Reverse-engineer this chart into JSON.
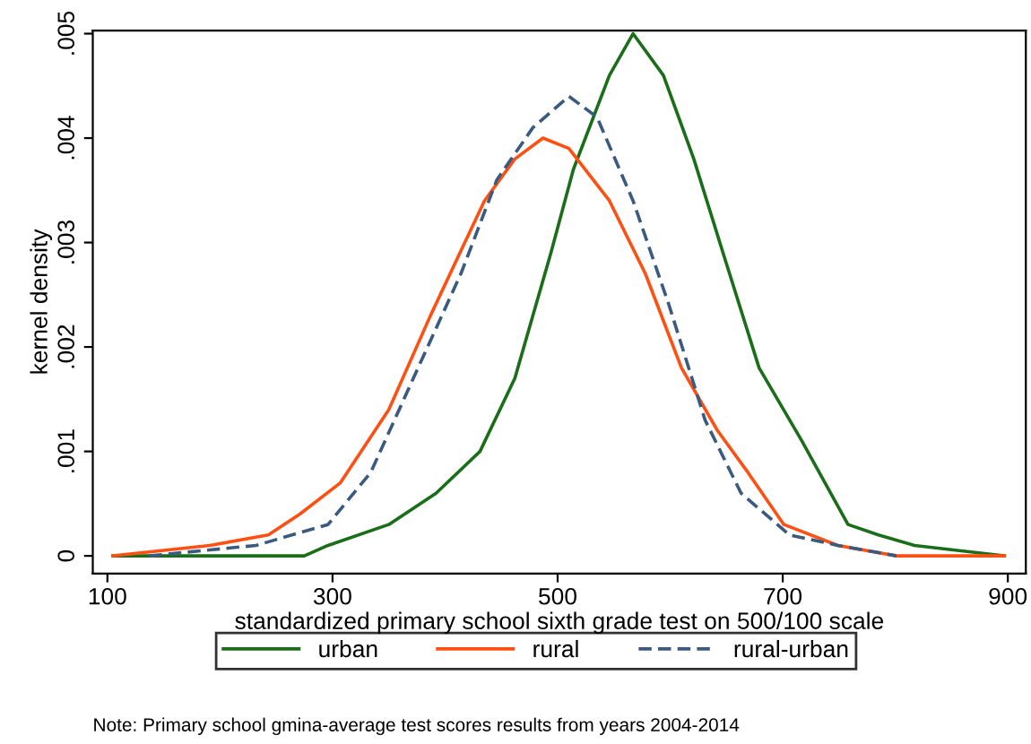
{
  "chart_data": {
    "type": "line",
    "xlabel": "standardized primary school sixth grade test on 500/100 scale",
    "ylabel": "kernel density",
    "series": [
      {
        "name": "urban",
        "color": "#1a6e1a",
        "line_style": "solid",
        "x": [
          105,
          275,
          296,
          350,
          392,
          431,
          462,
          494,
          514,
          546,
          567,
          594,
          621,
          647,
          679,
          717,
          758,
          785,
          817,
          897
        ],
        "values": [
          0.0,
          0.0,
          0.0001,
          0.0003,
          0.0006,
          0.001,
          0.0017,
          0.0029,
          0.0037,
          0.0046,
          0.005,
          0.0046,
          0.0038,
          0.0029,
          0.0018,
          0.0011,
          0.0003,
          0.0002,
          0.0001,
          0.0
        ]
      },
      {
        "name": "rural",
        "color": "#ff5014",
        "line_style": "solid",
        "x": [
          105,
          191,
          243,
          271,
          307,
          350,
          387,
          435,
          462,
          487,
          510,
          546,
          578,
          610,
          642,
          669,
          701,
          749,
          801,
          897
        ],
        "values": [
          0.0,
          0.0001,
          0.0002,
          0.0004,
          0.0007,
          0.0014,
          0.0023,
          0.0034,
          0.0038,
          0.004,
          0.0039,
          0.0034,
          0.0027,
          0.0018,
          0.0012,
          0.0008,
          0.0003,
          0.0001,
          0.0,
          0.0
        ]
      },
      {
        "name": "rural-urban",
        "color": "#3a5a80",
        "line_style": "dashed",
        "x": [
          137,
          232,
          296,
          334,
          376,
          414,
          446,
          478,
          510,
          535,
          567,
          599,
          631,
          663,
          706,
          749,
          801
        ],
        "values": [
          0.0,
          0.0001,
          0.0003,
          0.0008,
          0.0018,
          0.0027,
          0.0036,
          0.0041,
          0.0044,
          0.0042,
          0.0034,
          0.0024,
          0.0013,
          0.0006,
          0.0002,
          0.0001,
          0.0
        ]
      }
    ],
    "xlim": [
      87,
      916
    ],
    "xticks": [
      100,
      300,
      500,
      700,
      900
    ],
    "ylim": [
      -0.00017,
      0.00503
    ],
    "yticks": [
      {
        "value": 0,
        "label": "0"
      },
      {
        "value": 0.001,
        "label": ".001"
      },
      {
        "value": 0.002,
        "label": ".002"
      },
      {
        "value": 0.003,
        "label": ".003"
      },
      {
        "value": 0.004,
        "label": ".004"
      },
      {
        "value": 0.005,
        "label": ".005"
      }
    ],
    "grid": false,
    "legend": "bottom",
    "annotations": [
      "Note: Primary school gmina-average test scores results from years 2004-2014"
    ]
  }
}
